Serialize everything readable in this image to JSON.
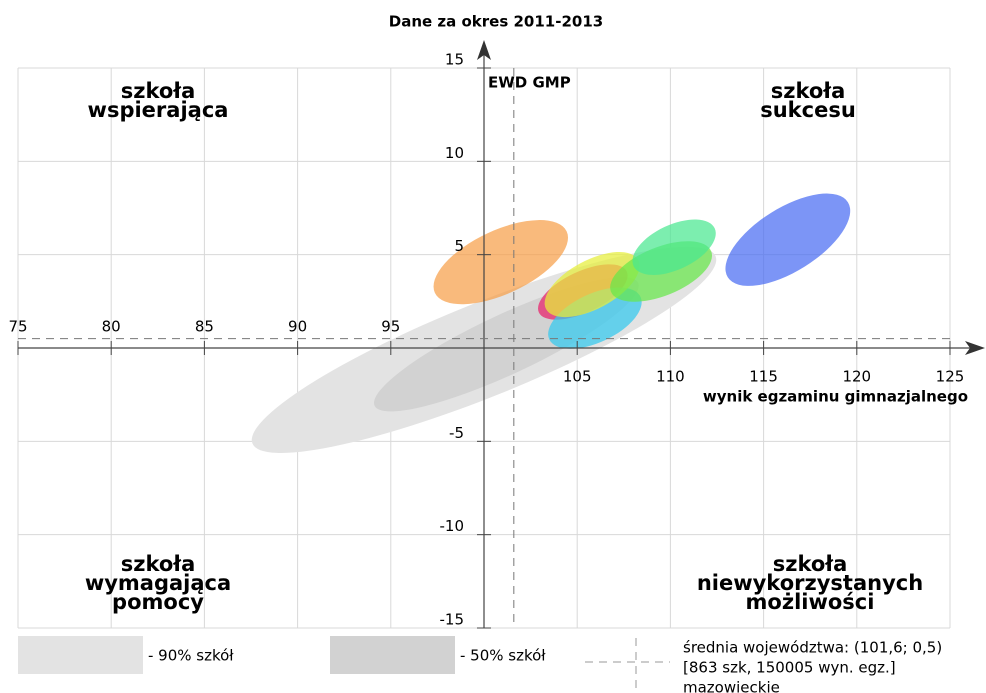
{
  "chart_data": {
    "type": "ellipse",
    "title": "Dane za okres 2011-2013",
    "ylabel": "EWD GMP",
    "xlabel": "wynik egzaminu gimnazjalnego",
    "xlim": [
      75,
      125
    ],
    "ylim": [
      -15,
      15
    ],
    "xticks": [
      75,
      80,
      85,
      90,
      95,
      105,
      110,
      115,
      120,
      125
    ],
    "yticks": [
      -15,
      -10,
      -5,
      5,
      10,
      15
    ],
    "grid": true,
    "quadrant_labels": [
      [
        "szkoła",
        "wspierająca"
      ],
      [
        "szkoła",
        "sukcesu"
      ],
      [
        "szkoła",
        "wymagająca",
        "pomocy"
      ],
      [
        "szkoła",
        "niewykorzystanych",
        "możliwości"
      ]
    ],
    "reference_series": [
      {
        "name": "- 90% szkół",
        "color": "#e3e3e3",
        "cx": 100,
        "cy": -0.1,
        "a": 13.4,
        "b": 2.5,
        "angle": 22
      },
      {
        "name": "- 50% szkół",
        "color": "#d2d2d2",
        "cx": 101.2,
        "cy": 0.2,
        "a": 7.8,
        "b": 1.6,
        "angle": 25
      }
    ],
    "series": [
      {
        "color": "#f7a04a",
        "cx": 100.9,
        "cy": 4.6,
        "a": 3.9,
        "b": 1.7,
        "angle": 25
      },
      {
        "color": "#e8206a",
        "cx": 105.3,
        "cy": 3.0,
        "a": 2.6,
        "b": 1.1,
        "angle": 25
      },
      {
        "color": "#33c9ef",
        "cx": 105.95,
        "cy": 1.6,
        "a": 2.7,
        "b": 1.3,
        "angle": 25
      },
      {
        "color": "#e6ef3a",
        "cx": 105.8,
        "cy": 3.4,
        "a": 2.8,
        "b": 1.3,
        "angle": 28
      },
      {
        "color": "#66e84a",
        "cx": 109.5,
        "cy": 4.1,
        "a": 2.9,
        "b": 1.3,
        "angle": 22
      },
      {
        "color": "#4ae890",
        "cx": 110.2,
        "cy": 5.4,
        "a": 2.4,
        "b": 1.2,
        "angle": 25
      },
      {
        "color": "#4a6cf2",
        "cx": 116.3,
        "cy": 5.8,
        "a": 3.8,
        "b": 1.7,
        "angle": 32
      }
    ],
    "mean": {
      "x": 101.6,
      "y": 0.5,
      "label": [
        "średnia województwa: (101,6; 0,5)",
        "[863 szk, 150005 wyn. egz.]",
        "mazowieckie"
      ]
    }
  }
}
